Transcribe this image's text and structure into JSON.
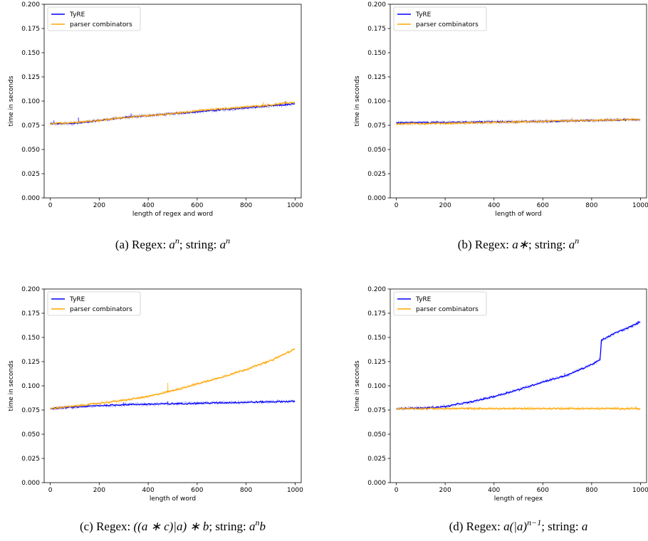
{
  "chart_data": [
    {
      "type": "line",
      "caption": {
        "prefix": "(a) Regex: ",
        "regex_main": "a",
        "regex_sup": "n",
        "regex_rest": "",
        "mid": "; string: ",
        "string_main": "a",
        "string_sup": "n",
        "string_rest": ""
      },
      "xlabel": "length of regex and word",
      "ylabel": "time in seconds",
      "xlim": [
        -25,
        1025
      ],
      "ylim": [
        0,
        0.2
      ],
      "xticks": [
        0,
        200,
        400,
        600,
        800,
        1000
      ],
      "yticks": [
        "0.000",
        "0.025",
        "0.050",
        "0.075",
        "0.100",
        "0.125",
        "0.150",
        "0.175",
        "0.200"
      ],
      "legend_position": "top-left",
      "series": [
        {
          "name": "TyRE",
          "color": "#0000ff",
          "points": [
            [
              0,
              0.0765
            ],
            [
              100,
              0.077
            ],
            [
              200,
              0.08
            ],
            [
              300,
              0.083
            ],
            [
              400,
              0.085
            ],
            [
              500,
              0.087
            ],
            [
              600,
              0.089
            ],
            [
              700,
              0.091
            ],
            [
              800,
              0.093
            ],
            [
              900,
              0.095
            ],
            [
              1000,
              0.097
            ]
          ],
          "spikes": [
            [
              15,
              0.08
            ],
            [
              115,
              0.083
            ],
            [
              330,
              0.087
            ],
            [
              850,
              0.095
            ],
            [
              960,
              0.1
            ]
          ]
        },
        {
          "name": "parser combinators",
          "color": "#ffa500",
          "points": [
            [
              0,
              0.0765
            ],
            [
              100,
              0.078
            ],
            [
              200,
              0.08
            ],
            [
              300,
              0.083
            ],
            [
              400,
              0.085
            ],
            [
              500,
              0.087
            ],
            [
              600,
              0.09
            ],
            [
              700,
              0.092
            ],
            [
              800,
              0.094
            ],
            [
              900,
              0.096
            ],
            [
              1000,
              0.099
            ]
          ],
          "spikes": [
            [
              620,
              0.092
            ],
            [
              870,
              0.099
            ]
          ]
        }
      ]
    },
    {
      "type": "line",
      "caption": {
        "prefix": "(b) Regex: ",
        "regex_main": "a∗",
        "regex_sup": "",
        "regex_rest": "",
        "mid": "; string: ",
        "string_main": "a",
        "string_sup": "n",
        "string_rest": ""
      },
      "xlabel": "length of word",
      "ylabel": "time in seconds",
      "xlim": [
        -25,
        1025
      ],
      "ylim": [
        0,
        0.2
      ],
      "xticks": [
        0,
        200,
        400,
        600,
        800,
        1000
      ],
      "yticks": [
        "0.000",
        "0.025",
        "0.050",
        "0.075",
        "0.100",
        "0.125",
        "0.150",
        "0.175",
        "0.200"
      ],
      "legend_position": "top-left",
      "series": [
        {
          "name": "TyRE",
          "color": "#0000ff",
          "points": [
            [
              0,
              0.0775
            ],
            [
              200,
              0.078
            ],
            [
              400,
              0.0785
            ],
            [
              600,
              0.079
            ],
            [
              800,
              0.08
            ],
            [
              1000,
              0.081
            ]
          ],
          "spikes": [
            [
              60,
              0.079
            ],
            [
              340,
              0.08
            ]
          ]
        },
        {
          "name": "parser combinators",
          "color": "#ffa500",
          "points": [
            [
              0,
              0.0765
            ],
            [
              200,
              0.077
            ],
            [
              400,
              0.078
            ],
            [
              600,
              0.079
            ],
            [
              800,
              0.08
            ],
            [
              1000,
              0.081
            ]
          ],
          "spikes": [
            [
              720,
              0.083
            ]
          ]
        }
      ]
    },
    {
      "type": "line",
      "caption": {
        "prefix": "(c) Regex: ",
        "regex_main": "((a ∗ c)|a) ∗ b",
        "regex_sup": "",
        "regex_rest": "",
        "mid": "; string: ",
        "string_main": "a",
        "string_sup": "n",
        "string_rest": "b"
      },
      "xlabel": "length of word",
      "ylabel": "time in seconds",
      "xlim": [
        -25,
        1025
      ],
      "ylim": [
        0,
        0.2
      ],
      "xticks": [
        0,
        200,
        400,
        600,
        800,
        1000
      ],
      "yticks": [
        "0.000",
        "0.025",
        "0.050",
        "0.075",
        "0.100",
        "0.125",
        "0.150",
        "0.175",
        "0.200"
      ],
      "legend_position": "top-left",
      "series": [
        {
          "name": "TyRE",
          "color": "#0000ff",
          "points": [
            [
              0,
              0.0765
            ],
            [
              100,
              0.078
            ],
            [
              200,
              0.0795
            ],
            [
              300,
              0.0805
            ],
            [
              400,
              0.081
            ],
            [
              500,
              0.0815
            ],
            [
              600,
              0.082
            ],
            [
              700,
              0.0825
            ],
            [
              800,
              0.083
            ],
            [
              900,
              0.0835
            ],
            [
              1000,
              0.084
            ]
          ],
          "spikes": [
            [
              300,
              0.083
            ],
            [
              480,
              0.084
            ]
          ]
        },
        {
          "name": "parser combinators",
          "color": "#ffa500",
          "points": [
            [
              0,
              0.0765
            ],
            [
              100,
              0.079
            ],
            [
              200,
              0.082
            ],
            [
              300,
              0.085
            ],
            [
              400,
              0.089
            ],
            [
              500,
              0.095
            ],
            [
              600,
              0.102
            ],
            [
              700,
              0.109
            ],
            [
              800,
              0.117
            ],
            [
              900,
              0.126
            ],
            [
              1000,
              0.138
            ]
          ],
          "spikes": [
            [
              480,
              0.103
            ]
          ]
        }
      ]
    },
    {
      "type": "line",
      "caption": {
        "prefix": "(d) Regex: ",
        "regex_main": "a(|a)",
        "regex_sup": "n−1",
        "regex_rest": "",
        "mid": "; string: ",
        "string_main": "a",
        "string_sup": "",
        "string_rest": ""
      },
      "xlabel": "length of regex",
      "ylabel": "time in seconds",
      "xlim": [
        -25,
        1025
      ],
      "ylim": [
        0,
        0.2
      ],
      "xticks": [
        0,
        200,
        400,
        600,
        800,
        1000
      ],
      "yticks": [
        "0.000",
        "0.025",
        "0.050",
        "0.075",
        "0.100",
        "0.125",
        "0.150",
        "0.175",
        "0.200"
      ],
      "legend_position": "top-left",
      "series": [
        {
          "name": "TyRE",
          "color": "#0000ff",
          "points": [
            [
              0,
              0.0765
            ],
            [
              100,
              0.077
            ],
            [
              200,
              0.0785
            ],
            [
              250,
              0.081
            ],
            [
              300,
              0.083
            ],
            [
              400,
              0.089
            ],
            [
              500,
              0.096
            ],
            [
              600,
              0.104
            ],
            [
              700,
              0.111
            ],
            [
              800,
              0.122
            ],
            [
              835,
              0.127
            ],
            [
              840,
              0.147
            ],
            [
              900,
              0.155
            ],
            [
              950,
              0.16
            ],
            [
              1000,
              0.166
            ]
          ],
          "spikes": [
            [
              280,
              0.083
            ],
            [
              450,
              0.094
            ],
            [
              690,
              0.113
            ],
            [
              990,
              0.167
            ]
          ]
        },
        {
          "name": "parser combinators",
          "color": "#ffa500",
          "points": [
            [
              0,
              0.0765
            ],
            [
              200,
              0.0765
            ],
            [
              400,
              0.0765
            ],
            [
              600,
              0.0765
            ],
            [
              800,
              0.0765
            ],
            [
              1000,
              0.0765
            ]
          ],
          "spikes": [
            [
              675,
              0.078
            ],
            [
              980,
              0.079
            ]
          ]
        }
      ]
    }
  ]
}
